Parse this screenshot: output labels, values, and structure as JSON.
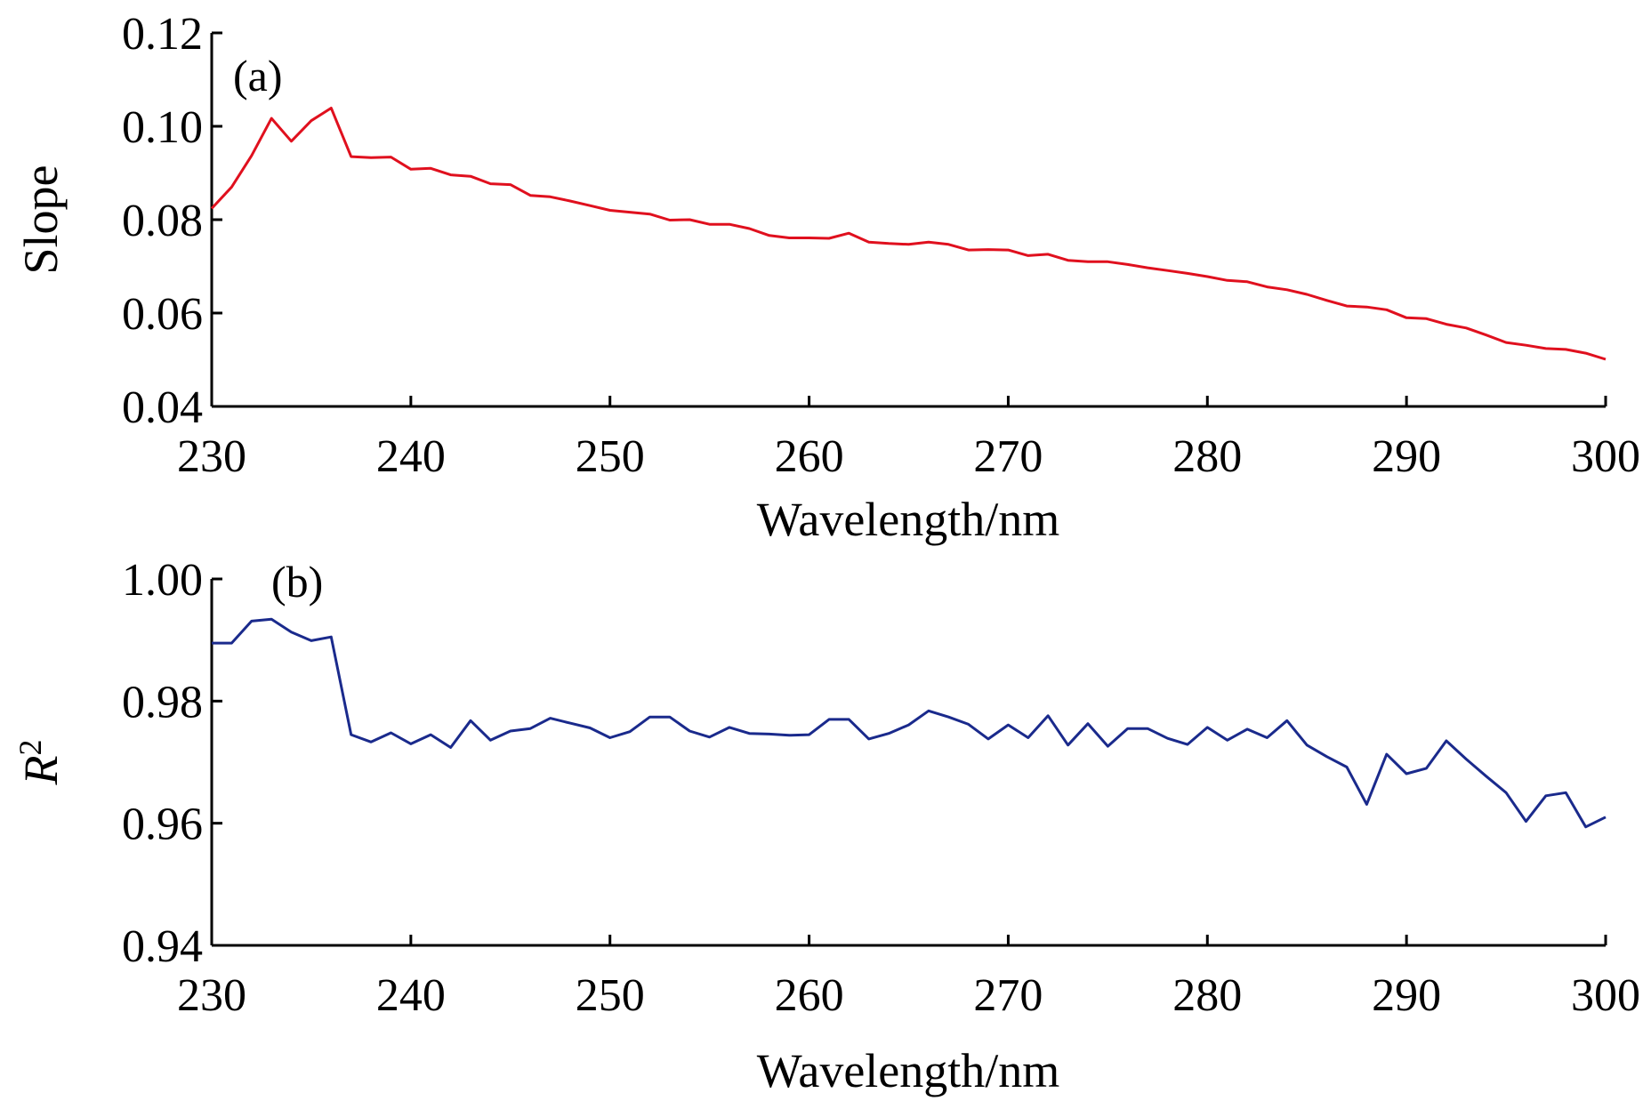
{
  "chart_data": [
    {
      "type": "line",
      "panel_label": "(a)",
      "xlabel": "Wavelength/nm",
      "ylabel": "Slope",
      "xlim": [
        230,
        300
      ],
      "ylim": [
        0.04,
        0.12
      ],
      "x_ticks": [
        "230",
        "240",
        "250",
        "260",
        "270",
        "280",
        "290",
        "300"
      ],
      "y_ticks": [
        "0.04",
        "0.06",
        "0.08",
        "0.10",
        "0.12"
      ],
      "grid": false,
      "series": [
        {
          "color": "#e0101e",
          "x": [
            230,
            231,
            232,
            233,
            234,
            235,
            236,
            237,
            238,
            239,
            240,
            241,
            242,
            243,
            244,
            245,
            246,
            247,
            248,
            249,
            250,
            251,
            252,
            253,
            254,
            255,
            256,
            257,
            258,
            259,
            260,
            261,
            262,
            263,
            264,
            265,
            266,
            267,
            268,
            269,
            270,
            271,
            272,
            273,
            274,
            275,
            276,
            277,
            278,
            279,
            280,
            281,
            282,
            283,
            284,
            285,
            286,
            287,
            288,
            289,
            290,
            291,
            292,
            293,
            294,
            295,
            296,
            297,
            298,
            299,
            300
          ],
          "y": [
            0.0824,
            0.087,
            0.0937,
            0.1017,
            0.0968,
            0.1012,
            0.1039,
            0.0935,
            0.0933,
            0.0934,
            0.0908,
            0.091,
            0.0896,
            0.0893,
            0.0877,
            0.0875,
            0.0852,
            0.0849,
            0.084,
            0.083,
            0.082,
            0.0816,
            0.0812,
            0.0799,
            0.08,
            0.079,
            0.079,
            0.0781,
            0.0766,
            0.0761,
            0.0761,
            0.076,
            0.0771,
            0.0752,
            0.0749,
            0.0747,
            0.0752,
            0.0747,
            0.0735,
            0.0736,
            0.0735,
            0.0723,
            0.0726,
            0.0713,
            0.071,
            0.071,
            0.0704,
            0.0697,
            0.0691,
            0.0685,
            0.0678,
            0.067,
            0.0667,
            0.0656,
            0.065,
            0.064,
            0.0627,
            0.0615,
            0.0613,
            0.0607,
            0.059,
            0.0588,
            0.0576,
            0.0568,
            0.0553,
            0.0537,
            0.0531,
            0.0524,
            0.0522,
            0.0514,
            0.0501
          ]
        }
      ]
    },
    {
      "type": "line",
      "panel_label": "(b)",
      "xlabel": "Wavelength/nm",
      "ylabel": "R",
      "ylabel_sup": "2",
      "xlim": [
        230,
        300
      ],
      "ylim": [
        0.94,
        1.0
      ],
      "x_ticks": [
        "230",
        "240",
        "250",
        "260",
        "270",
        "280",
        "290",
        "300"
      ],
      "y_ticks": [
        "0.94",
        "0.96",
        "0.98",
        "1.00"
      ],
      "grid": false,
      "series": [
        {
          "color": "#1a2a8c",
          "x": [
            230,
            231,
            232,
            233,
            234,
            235,
            236,
            237,
            238,
            239,
            240,
            241,
            242,
            243,
            244,
            245,
            246,
            247,
            248,
            249,
            250,
            251,
            252,
            253,
            254,
            255,
            256,
            257,
            258,
            259,
            260,
            261,
            262,
            263,
            264,
            265,
            266,
            267,
            268,
            269,
            270,
            271,
            272,
            273,
            274,
            275,
            276,
            277,
            278,
            279,
            280,
            281,
            282,
            283,
            284,
            285,
            286,
            287,
            288,
            289,
            290,
            291,
            292,
            293,
            294,
            295,
            296,
            297,
            298,
            299,
            300
          ],
          "y": [
            0.9895,
            0.9895,
            0.9931,
            0.9934,
            0.9913,
            0.9899,
            0.9905,
            0.9745,
            0.9733,
            0.9748,
            0.973,
            0.9745,
            0.9724,
            0.9768,
            0.9736,
            0.9751,
            0.9755,
            0.9772,
            0.9764,
            0.9756,
            0.974,
            0.975,
            0.9774,
            0.9774,
            0.9751,
            0.9741,
            0.9757,
            0.9747,
            0.9746,
            0.9744,
            0.9745,
            0.977,
            0.977,
            0.9738,
            0.9747,
            0.9761,
            0.9784,
            0.9774,
            0.9762,
            0.9738,
            0.9761,
            0.974,
            0.9776,
            0.9728,
            0.9763,
            0.9726,
            0.9755,
            0.9755,
            0.9739,
            0.9729,
            0.9757,
            0.9736,
            0.9754,
            0.974,
            0.9768,
            0.9728,
            0.9709,
            0.9692,
            0.9631,
            0.9713,
            0.9681,
            0.969,
            0.9735,
            0.9705,
            0.9677,
            0.965,
            0.9603,
            0.9645,
            0.965,
            0.9594,
            0.961
          ]
        }
      ]
    }
  ]
}
